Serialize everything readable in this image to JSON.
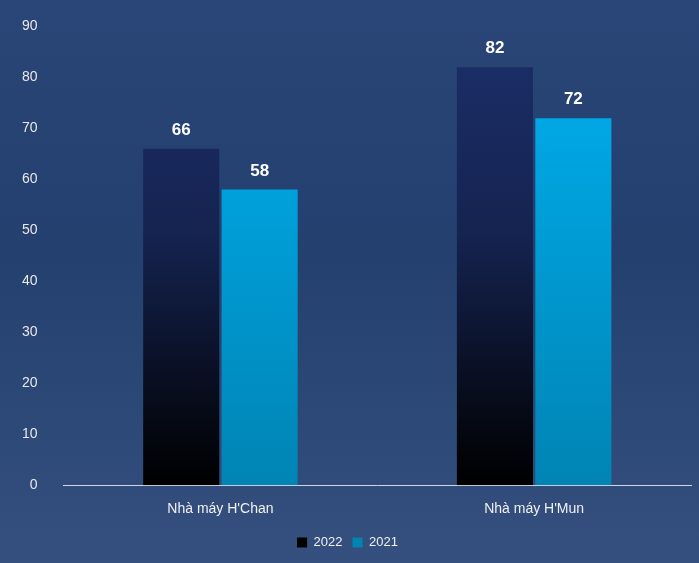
{
  "chart_data": {
    "type": "bar",
    "categories": [
      "Nhà máy H'Chan",
      "Nhà máy H'Mun"
    ],
    "series": [
      {
        "name": "2022",
        "color": "#1c2f6b",
        "values": [
          66,
          82
        ]
      },
      {
        "name": "2021",
        "color": "#00b0f0",
        "values": [
          58,
          72
        ]
      }
    ],
    "ylim": [
      0,
      90
    ],
    "yticks": [
      0,
      10,
      20,
      30,
      40,
      50,
      60,
      70,
      80,
      90
    ],
    "grid": false,
    "legend": "bottom",
    "data_labels": true
  }
}
